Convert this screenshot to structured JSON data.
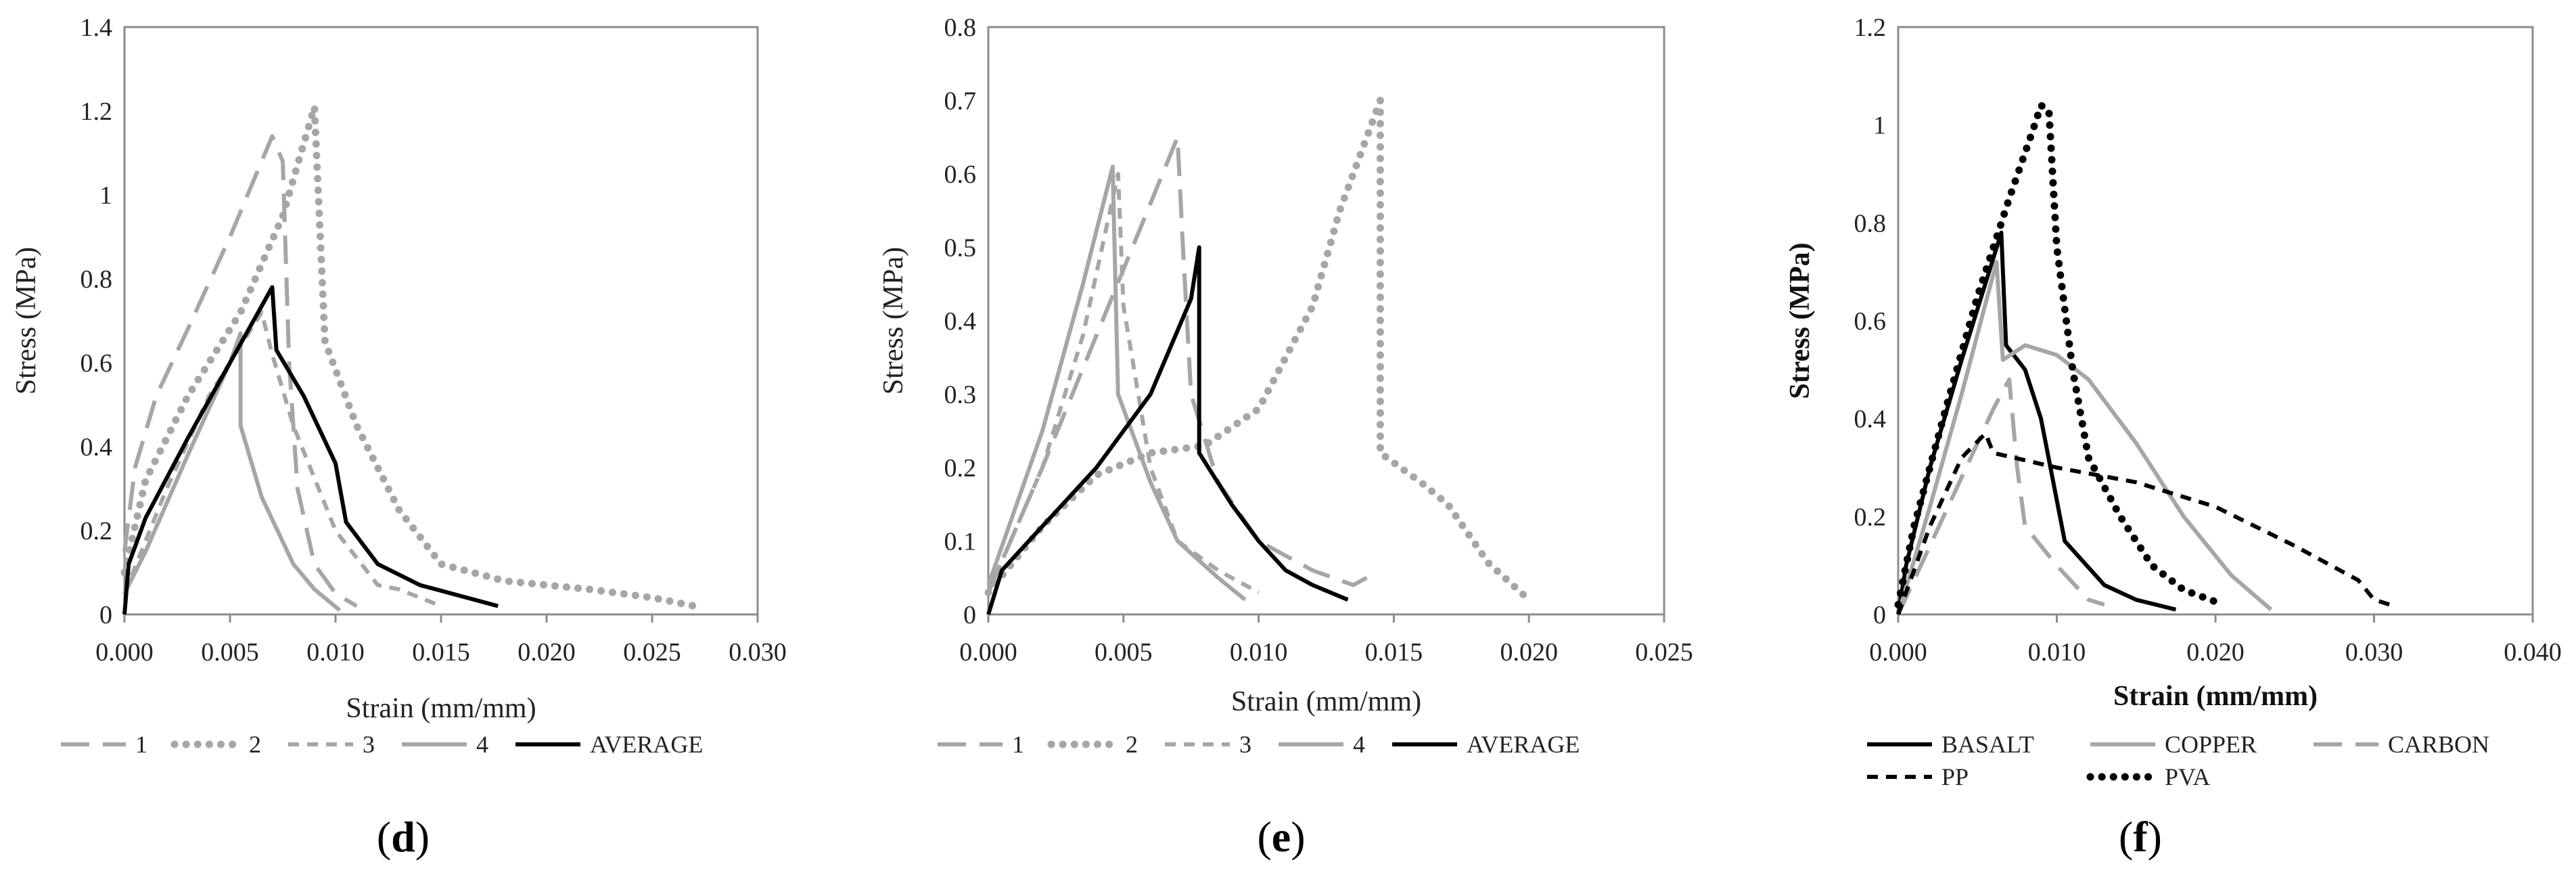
{
  "panels": [
    {
      "letter": "d",
      "open": "(",
      "close": ")"
    },
    {
      "letter": "e",
      "open": "(",
      "close": ")"
    },
    {
      "letter": "f",
      "open": "(",
      "close": ")"
    }
  ],
  "colors": {
    "gray": "#a6a6a6",
    "black": "#000000",
    "axis": "#8c8c8c"
  },
  "chart_data": [
    {
      "type": "line",
      "panel": "d",
      "title": "",
      "xlabel": "Strain (mm/mm)",
      "ylabel": "Stress (MPa)",
      "xlim": [
        0,
        0.03
      ],
      "ylim": [
        0,
        1.4
      ],
      "xticks": [
        "0.000",
        "0.005",
        "0.010",
        "0.015",
        "0.020",
        "0.025",
        "0.030"
      ],
      "yticks": [
        "0",
        "0.2",
        "0.4",
        "0.6",
        "0.8",
        "1",
        "1.2",
        "1.4"
      ],
      "legend_position": "bottom",
      "series": [
        {
          "name": "1",
          "style": "longdash",
          "color": "gray",
          "points": [
            [
              0,
              0.15
            ],
            [
              0.0005,
              0.35
            ],
            [
              0.0015,
              0.52
            ],
            [
              0.003,
              0.68
            ],
            [
              0.005,
              0.9
            ],
            [
              0.007,
              1.14
            ],
            [
              0.0075,
              1.08
            ],
            [
              0.0078,
              0.6
            ],
            [
              0.0082,
              0.3
            ],
            [
              0.009,
              0.12
            ],
            [
              0.01,
              0.05
            ],
            [
              0.011,
              0.02
            ]
          ]
        },
        {
          "name": "2",
          "style": "dotted",
          "color": "gray",
          "points": [
            [
              0,
              0.1
            ],
            [
              0.001,
              0.32
            ],
            [
              0.003,
              0.52
            ],
            [
              0.0055,
              0.72
            ],
            [
              0.0075,
              0.95
            ],
            [
              0.009,
              1.21
            ],
            [
              0.0095,
              0.65
            ],
            [
              0.011,
              0.45
            ],
            [
              0.013,
              0.25
            ],
            [
              0.015,
              0.12
            ],
            [
              0.018,
              0.08
            ],
            [
              0.022,
              0.06
            ],
            [
              0.025,
              0.04
            ],
            [
              0.027,
              0.02
            ]
          ]
        },
        {
          "name": "3",
          "style": "dashed",
          "color": "gray",
          "points": [
            [
              0,
              0.05
            ],
            [
              0.002,
              0.3
            ],
            [
              0.004,
              0.52
            ],
            [
              0.006,
              0.68
            ],
            [
              0.0065,
              0.72
            ],
            [
              0.007,
              0.62
            ],
            [
              0.008,
              0.45
            ],
            [
              0.01,
              0.2
            ],
            [
              0.012,
              0.07
            ],
            [
              0.013,
              0.06
            ],
            [
              0.015,
              0.02
            ]
          ]
        },
        {
          "name": "4",
          "style": "solid",
          "color": "gray",
          "points": [
            [
              0,
              0.05
            ],
            [
              0.001,
              0.15
            ],
            [
              0.003,
              0.38
            ],
            [
              0.005,
              0.6
            ],
            [
              0.0055,
              0.67
            ],
            [
              0.0055,
              0.45
            ],
            [
              0.0065,
              0.28
            ],
            [
              0.008,
              0.12
            ],
            [
              0.009,
              0.06
            ],
            [
              0.0102,
              0.01
            ]
          ]
        },
        {
          "name": "AVERAGE",
          "style": "solid",
          "color": "black",
          "points": [
            [
              0,
              0
            ],
            [
              0.0002,
              0.12
            ],
            [
              0.001,
              0.23
            ],
            [
              0.003,
              0.42
            ],
            [
              0.005,
              0.6
            ],
            [
              0.007,
              0.78
            ],
            [
              0.0072,
              0.63
            ],
            [
              0.0085,
              0.52
            ],
            [
              0.01,
              0.36
            ],
            [
              0.0105,
              0.22
            ],
            [
              0.012,
              0.12
            ],
            [
              0.014,
              0.07
            ],
            [
              0.0177,
              0.02
            ]
          ]
        }
      ]
    },
    {
      "type": "line",
      "panel": "e",
      "title": "",
      "xlabel": "Strain (mm/mm)",
      "ylabel": "Stress (MPa)",
      "xlim": [
        0,
        0.025
      ],
      "ylim": [
        0,
        0.8
      ],
      "xticks": [
        "0.000",
        "0.005",
        "0.010",
        "0.015",
        "0.020",
        "0.025"
      ],
      "yticks": [
        "0",
        "0.1",
        "0.2",
        "0.3",
        "0.4",
        "0.5",
        "0.6",
        "0.7",
        "0.8"
      ],
      "legend_position": "bottom",
      "series": [
        {
          "name": "1",
          "style": "longdash",
          "color": "gray",
          "points": [
            [
              0,
              0.03
            ],
            [
              0.002,
              0.2
            ],
            [
              0.004,
              0.38
            ],
            [
              0.006,
              0.56
            ],
            [
              0.007,
              0.65
            ],
            [
              0.0072,
              0.5
            ],
            [
              0.0075,
              0.3
            ],
            [
              0.0085,
              0.18
            ],
            [
              0.01,
              0.1
            ],
            [
              0.012,
              0.06
            ],
            [
              0.0135,
              0.04
            ],
            [
              0.014,
              0.05
            ]
          ]
        },
        {
          "name": "2",
          "style": "dotted",
          "color": "gray",
          "points": [
            [
              0,
              0.03
            ],
            [
              0.002,
              0.12
            ],
            [
              0.004,
              0.19
            ],
            [
              0.006,
              0.22
            ],
            [
              0.008,
              0.23
            ],
            [
              0.01,
              0.28
            ],
            [
              0.012,
              0.42
            ],
            [
              0.013,
              0.55
            ],
            [
              0.0145,
              0.7
            ],
            [
              0.0145,
              0.22
            ],
            [
              0.016,
              0.18
            ],
            [
              0.017,
              0.15
            ],
            [
              0.0185,
              0.07
            ],
            [
              0.02,
              0.02
            ]
          ]
        },
        {
          "name": "3",
          "style": "dashed",
          "color": "gray",
          "points": [
            [
              0,
              0.03
            ],
            [
              0.002,
              0.2
            ],
            [
              0.0035,
              0.38
            ],
            [
              0.0048,
              0.6
            ],
            [
              0.005,
              0.42
            ],
            [
              0.006,
              0.2
            ],
            [
              0.007,
              0.1
            ],
            [
              0.0085,
              0.06
            ],
            [
              0.01,
              0.03
            ]
          ]
        },
        {
          "name": "4",
          "style": "solid",
          "color": "gray",
          "points": [
            [
              0,
              0.04
            ],
            [
              0.002,
              0.25
            ],
            [
              0.0035,
              0.45
            ],
            [
              0.0046,
              0.61
            ],
            [
              0.0048,
              0.3
            ],
            [
              0.006,
              0.18
            ],
            [
              0.007,
              0.1
            ],
            [
              0.0085,
              0.05
            ],
            [
              0.0095,
              0.02
            ]
          ]
        },
        {
          "name": "AVERAGE",
          "style": "solid",
          "color": "black",
          "points": [
            [
              0,
              0
            ],
            [
              0.0005,
              0.06
            ],
            [
              0.002,
              0.12
            ],
            [
              0.004,
              0.2
            ],
            [
              0.006,
              0.3
            ],
            [
              0.0075,
              0.43
            ],
            [
              0.0078,
              0.5
            ],
            [
              0.0078,
              0.22
            ],
            [
              0.009,
              0.15
            ],
            [
              0.01,
              0.1
            ],
            [
              0.011,
              0.06
            ],
            [
              0.012,
              0.04
            ],
            [
              0.0133,
              0.02
            ]
          ]
        }
      ]
    },
    {
      "type": "line",
      "panel": "f",
      "title": "",
      "xlabel": "Strain (mm/mm)",
      "ylabel": "Stress (MPa)",
      "xlim": [
        0,
        0.04
      ],
      "ylim": [
        0,
        1.2
      ],
      "xticks": [
        "0.000",
        "0.010",
        "0.020",
        "0.030",
        "0.040"
      ],
      "yticks": [
        "0",
        "0.2",
        "0.4",
        "0.6",
        "0.8",
        "1",
        "1.2"
      ],
      "legend_position": "bottom",
      "series": [
        {
          "name": "BASALT",
          "style": "solid",
          "color": "black",
          "points": [
            [
              0,
              0
            ],
            [
              0.0005,
              0.1
            ],
            [
              0.002,
              0.3
            ],
            [
              0.004,
              0.52
            ],
            [
              0.0065,
              0.78
            ],
            [
              0.0068,
              0.55
            ],
            [
              0.008,
              0.5
            ],
            [
              0.009,
              0.4
            ],
            [
              0.0105,
              0.15
            ],
            [
              0.013,
              0.06
            ],
            [
              0.015,
              0.03
            ],
            [
              0.0175,
              0.01
            ]
          ]
        },
        {
          "name": "COPPER",
          "style": "solid",
          "color": "gray",
          "points": [
            [
              0,
              0
            ],
            [
              0.002,
              0.22
            ],
            [
              0.004,
              0.45
            ],
            [
              0.0062,
              0.72
            ],
            [
              0.0066,
              0.52
            ],
            [
              0.008,
              0.55
            ],
            [
              0.01,
              0.53
            ],
            [
              0.012,
              0.48
            ],
            [
              0.015,
              0.35
            ],
            [
              0.018,
              0.2
            ],
            [
              0.021,
              0.08
            ],
            [
              0.0235,
              0.01
            ]
          ]
        },
        {
          "name": "CARBON",
          "style": "longdash",
          "color": "gray",
          "points": [
            [
              0,
              0
            ],
            [
              0.002,
              0.14
            ],
            [
              0.004,
              0.28
            ],
            [
              0.006,
              0.42
            ],
            [
              0.007,
              0.48
            ],
            [
              0.0075,
              0.3
            ],
            [
              0.008,
              0.18
            ],
            [
              0.01,
              0.1
            ],
            [
              0.012,
              0.03
            ],
            [
              0.013,
              0.02
            ]
          ]
        },
        {
          "name": "PP",
          "style": "dashed",
          "color": "black",
          "points": [
            [
              0,
              0
            ],
            [
              0.002,
              0.18
            ],
            [
              0.004,
              0.32
            ],
            [
              0.0055,
              0.37
            ],
            [
              0.006,
              0.33
            ],
            [
              0.01,
              0.3
            ],
            [
              0.015,
              0.27
            ],
            [
              0.02,
              0.22
            ],
            [
              0.025,
              0.14
            ],
            [
              0.029,
              0.07
            ],
            [
              0.03,
              0.03
            ],
            [
              0.031,
              0.02
            ]
          ]
        },
        {
          "name": "PVA",
          "style": "dotted",
          "color": "black",
          "points": [
            [
              0,
              0.02
            ],
            [
              0.001,
              0.18
            ],
            [
              0.003,
              0.42
            ],
            [
              0.005,
              0.65
            ],
            [
              0.007,
              0.85
            ],
            [
              0.0085,
              0.99
            ],
            [
              0.009,
              1.04
            ],
            [
              0.0095,
              1.03
            ],
            [
              0.01,
              0.75
            ],
            [
              0.011,
              0.5
            ],
            [
              0.012,
              0.32
            ],
            [
              0.014,
              0.2
            ],
            [
              0.016,
              0.1
            ],
            [
              0.018,
              0.05
            ],
            [
              0.0205,
              0.02
            ]
          ]
        }
      ]
    }
  ]
}
